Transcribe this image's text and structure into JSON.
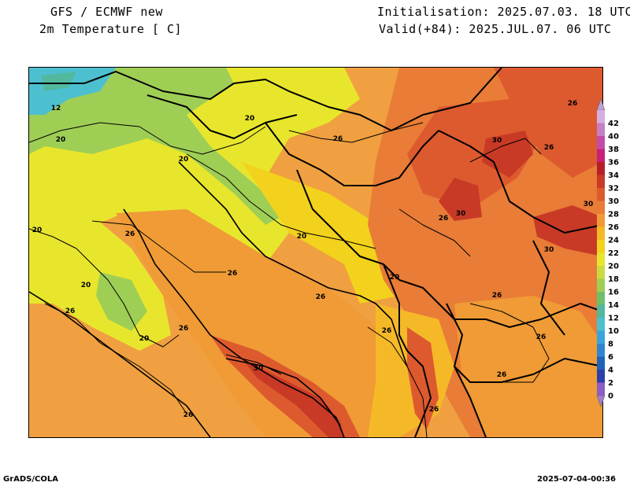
{
  "header": {
    "title_line1": "GFS / ECMWF new",
    "title_line2": "2m Temperature [ C]",
    "initialisation": "Initialisation: 2025.07.03. 18 UTC",
    "valid": "Valid(+84): 2025.JUL.07. 06 UTC"
  },
  "footer": {
    "left": "GrADS/COLA",
    "right": "2025-07-04-00:36"
  },
  "legend": {
    "levels": [
      "0",
      "2",
      "4",
      "6",
      "8",
      "10",
      "12",
      "14",
      "16",
      "18",
      "20",
      "22",
      "24",
      "26",
      "28",
      "30",
      "32",
      "34",
      "36",
      "38",
      "40",
      "42"
    ],
    "colors": [
      "#8a5ec4",
      "#2b3fa8",
      "#1f63b8",
      "#2f86d0",
      "#3aa5dc",
      "#4cc0cf",
      "#52b89e",
      "#6fc06a",
      "#9fce55",
      "#c8dc42",
      "#e8e62c",
      "#f2d21c",
      "#f5b928",
      "#f09b36",
      "#e97c36",
      "#dd5a2e",
      "#c83a26",
      "#b61f2a",
      "#c8207a",
      "#c24da8",
      "#c77fc6",
      "#d7aee0"
    ],
    "top_arrow_color": "#bfa3d2",
    "bottom_arrow_color": "#a57bd0"
  },
  "map": {
    "colors": {
      "cold_cyan": "#4cc0cf",
      "cool_green": "#9fce55",
      "mild_yellow": "#e8e62c",
      "warm_yellow": "#f2d21c",
      "warm_orange": "#f09b36",
      "hot_orange": "#e97c36",
      "hot_red": "#dd5a2e",
      "very_hot_red": "#c83a26",
      "land_base": "#f0a040"
    },
    "contour_labels": [
      {
        "text": "12"
      },
      {
        "text": "20"
      },
      {
        "text": "20"
      },
      {
        "text": "20"
      },
      {
        "text": "20"
      },
      {
        "text": "20"
      },
      {
        "text": "20"
      },
      {
        "text": "20"
      },
      {
        "text": "20"
      },
      {
        "text": "26"
      },
      {
        "text": "26"
      },
      {
        "text": "26"
      },
      {
        "text": "26"
      },
      {
        "text": "26"
      },
      {
        "text": "26"
      },
      {
        "text": "26"
      },
      {
        "text": "26"
      },
      {
        "text": "26"
      },
      {
        "text": "26"
      },
      {
        "text": "26"
      },
      {
        "text": "26"
      },
      {
        "text": "26"
      },
      {
        "text": "26"
      },
      {
        "text": "26"
      },
      {
        "text": "30"
      },
      {
        "text": "30"
      },
      {
        "text": "30"
      },
      {
        "text": "30"
      },
      {
        "text": "30"
      }
    ]
  }
}
